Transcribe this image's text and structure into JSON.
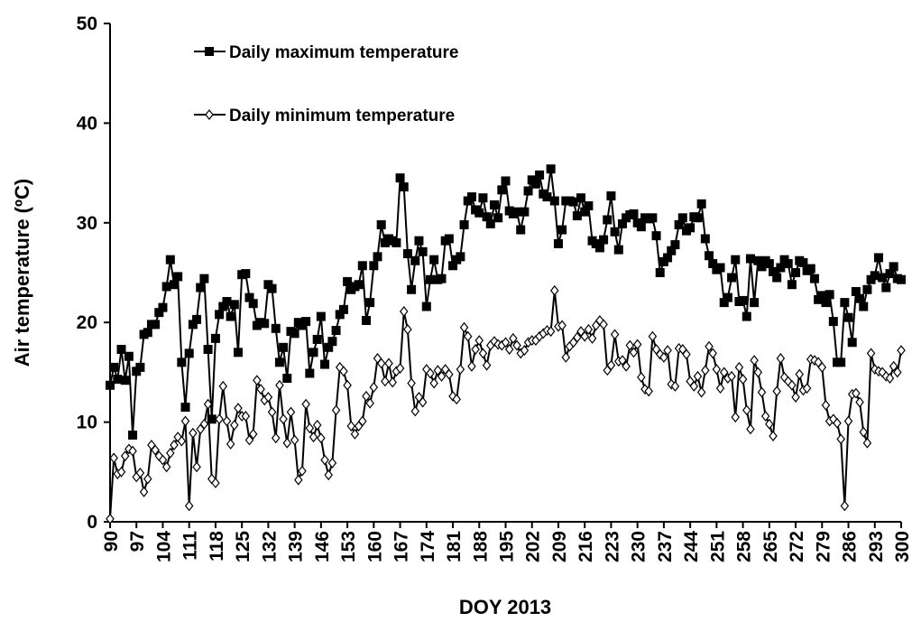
{
  "chart_data": {
    "type": "line",
    "x_label": "DOY 2013",
    "y_label": "Air temperature (ºC)",
    "xlim": [
      90,
      300
    ],
    "ylim": [
      0,
      50
    ],
    "yticks": [
      0,
      10,
      20,
      30,
      40,
      50
    ],
    "xticks": [
      90,
      97,
      104,
      111,
      118,
      125,
      132,
      139,
      146,
      153,
      160,
      167,
      174,
      181,
      188,
      195,
      202,
      209,
      216,
      223,
      230,
      237,
      244,
      251,
      258,
      265,
      272,
      279,
      286,
      293,
      300
    ],
    "x": [
      90,
      91,
      92,
      93,
      94,
      95,
      96,
      97,
      98,
      99,
      100,
      101,
      102,
      103,
      104,
      105,
      106,
      107,
      108,
      109,
      110,
      111,
      112,
      113,
      114,
      115,
      116,
      117,
      118,
      119,
      120,
      121,
      122,
      123,
      124,
      125,
      126,
      127,
      128,
      129,
      130,
      131,
      132,
      133,
      134,
      135,
      136,
      137,
      138,
      139,
      140,
      141,
      142,
      143,
      144,
      145,
      146,
      147,
      148,
      149,
      150,
      151,
      152,
      153,
      154,
      155,
      156,
      157,
      158,
      159,
      160,
      161,
      162,
      163,
      164,
      165,
      166,
      167,
      168,
      169,
      170,
      171,
      172,
      173,
      174,
      175,
      176,
      177,
      178,
      179,
      180,
      181,
      182,
      183,
      184,
      185,
      186,
      187,
      188,
      189,
      190,
      191,
      192,
      193,
      194,
      195,
      196,
      197,
      198,
      199,
      200,
      201,
      202,
      203,
      204,
      205,
      206,
      207,
      208,
      209,
      210,
      211,
      212,
      213,
      214,
      215,
      216,
      217,
      218,
      219,
      220,
      221,
      222,
      223,
      224,
      225,
      226,
      227,
      228,
      229,
      230,
      231,
      232,
      233,
      234,
      235,
      236,
      237,
      238,
      239,
      240,
      241,
      242,
      243,
      244,
      245,
      246,
      247,
      248,
      249,
      250,
      251,
      252,
      253,
      254,
      255,
      256,
      257,
      258,
      259,
      260,
      261,
      262,
      263,
      264,
      265,
      266,
      267,
      268,
      269,
      270,
      271,
      272,
      273,
      274,
      275,
      276,
      277,
      278,
      279,
      280,
      281,
      282,
      283,
      284,
      285,
      286,
      287,
      288,
      289,
      290,
      291,
      292,
      293,
      294,
      295,
      296,
      297,
      298,
      299,
      300
    ],
    "series": [
      {
        "name": "Daily maximum temperature",
        "color": "#000000",
        "marker": "square",
        "values": [
          13.7,
          15.5,
          14.3,
          17.3,
          14.2,
          16.6,
          8.7,
          15.1,
          15.5,
          18.8,
          19.0,
          19.8,
          19.8,
          21.0,
          21.5,
          23.6,
          26.3,
          23.8,
          24.6,
          16.0,
          11.5,
          16.9,
          19.8,
          20.3,
          23.5,
          24.4,
          17.3,
          10.3,
          18.4,
          20.8,
          21.6,
          22.1,
          20.6,
          21.8,
          17.0,
          24.8,
          24.9,
          22.5,
          21.9,
          19.7,
          20.0,
          19.9,
          23.8,
          23.4,
          19.4,
          16.0,
          17.5,
          14.4,
          19.1,
          18.9,
          20.0,
          19.7,
          20.1,
          14.9,
          17.0,
          18.3,
          20.6,
          15.8,
          17.5,
          18.1,
          19.2,
          20.8,
          21.3,
          24.1,
          23.3,
          23.6,
          23.8,
          25.7,
          20.2,
          22.0,
          25.7,
          26.6,
          29.8,
          28.0,
          28.4,
          28.2,
          28.0,
          34.5,
          33.6,
          26.9,
          23.3,
          26.2,
          28.2,
          27.1,
          21.6,
          24.3,
          26.3,
          24.3,
          24.4,
          28.2,
          28.4,
          25.7,
          26.3,
          26.6,
          29.8,
          32.2,
          32.6,
          31.3,
          31.0,
          32.5,
          30.6,
          29.9,
          31.8,
          30.5,
          33.3,
          34.2,
          31.2,
          30.9,
          31.1,
          29.3,
          31.1,
          33.2,
          34.3,
          33.9,
          34.8,
          32.9,
          32.6,
          35.4,
          32.2,
          27.9,
          29.3,
          32.2,
          32.2,
          32.1,
          30.7,
          32.5,
          31.1,
          31.7,
          28.2,
          27.9,
          27.5,
          28.3,
          30.3,
          32.7,
          29.1,
          27.3,
          29.9,
          30.5,
          30.8,
          30.9,
          30.0,
          29.6,
          30.5,
          30.4,
          30.5,
          28.7,
          25.0,
          26.1,
          26.5,
          27.2,
          27.8,
          29.8,
          30.5,
          29.2,
          29.5,
          30.6,
          30.5,
          31.9,
          28.4,
          26.7,
          25.9,
          25.3,
          25.5,
          22.0,
          22.5,
          24.5,
          26.3,
          22.1,
          22.2,
          20.6,
          26.4,
          22.0,
          26.2,
          25.6,
          26.2,
          25.9,
          25.1,
          24.5,
          25.5,
          26.3,
          25.9,
          23.8,
          25.0,
          26.2,
          26.0,
          25.2,
          25.4,
          24.4,
          22.3,
          22.7,
          22.0,
          22.8,
          20.1,
          16.0,
          16.0,
          22.0,
          20.5,
          18.0,
          23.1,
          22.4,
          21.6,
          23.3,
          24.3,
          24.7,
          26.5,
          24.5,
          23.5,
          24.9,
          25.6,
          24.4,
          24.3
        ]
      },
      {
        "name": "Daily minimum temperature",
        "color": "#000000",
        "marker": "diamond",
        "values": [
          0.3,
          6.4,
          4.8,
          5.0,
          6.6,
          7.3,
          7.1,
          4.5,
          4.9,
          3.0,
          4.3,
          7.7,
          7.2,
          6.6,
          6.2,
          5.5,
          6.9,
          7.7,
          8.5,
          8.1,
          10.1,
          1.6,
          8.9,
          5.5,
          9.3,
          9.8,
          11.8,
          4.3,
          3.9,
          10.3,
          13.6,
          10.1,
          7.8,
          9.7,
          11.4,
          10.6,
          10.6,
          8.2,
          8.8,
          14.2,
          13.3,
          12.2,
          12.5,
          11.0,
          8.4,
          13.7,
          10.3,
          7.9,
          11.0,
          8.2,
          4.2,
          5.1,
          11.8,
          9.4,
          8.5,
          9.7,
          8.4,
          6.2,
          4.7,
          5.9,
          11.2,
          15.5,
          15.1,
          13.7,
          9.6,
          8.8,
          9.6,
          10.1,
          12.6,
          11.9,
          13.5,
          16.4,
          15.9,
          14.1,
          15.9,
          14.0,
          15.1,
          15.4,
          21.1,
          19.3,
          13.9,
          11.1,
          12.5,
          12.0,
          15.3,
          14.9,
          13.9,
          15.2,
          14.6,
          15.3,
          14.8,
          12.6,
          12.3,
          15.3,
          19.5,
          18.6,
          15.6,
          17.3,
          18.2,
          16.9,
          15.7,
          17.7,
          18.1,
          17.8,
          17.7,
          18.0,
          17.3,
          18.4,
          17.7,
          16.9,
          17.2,
          18.0,
          18.2,
          18.2,
          18.6,
          18.9,
          19.2,
          19.1,
          23.2,
          19.6,
          19.7,
          16.5,
          17.6,
          18.0,
          18.5,
          19.1,
          18.6,
          19.3,
          18.4,
          19.7,
          20.2,
          19.8,
          15.2,
          15.7,
          18.8,
          16.1,
          16.2,
          15.6,
          17.7,
          17.0,
          17.8,
          14.5,
          13.3,
          13.1,
          18.6,
          17.3,
          16.8,
          16.5,
          17.2,
          13.8,
          13.6,
          17.4,
          17.3,
          16.8,
          14.1,
          13.6,
          14.6,
          13.0,
          15.2,
          17.6,
          16.9,
          15.3,
          13.4,
          15.0,
          14.4,
          14.6,
          10.5,
          15.5,
          14.3,
          11.2,
          9.3,
          16.2,
          15.0,
          13.0,
          10.6,
          9.8,
          8.6,
          13.1,
          16.4,
          14.5,
          14.1,
          13.7,
          12.5,
          14.8,
          13.2,
          13.4,
          16.3,
          16.2,
          16.0,
          15.5,
          11.7,
          10.1,
          10.3,
          9.9,
          8.3,
          1.6,
          10.1,
          12.8,
          12.9,
          12.0,
          9.0,
          7.9,
          16.9,
          15.3,
          15.1,
          15.0,
          14.6,
          14.4,
          15.6,
          15.0,
          17.2
        ]
      }
    ]
  }
}
